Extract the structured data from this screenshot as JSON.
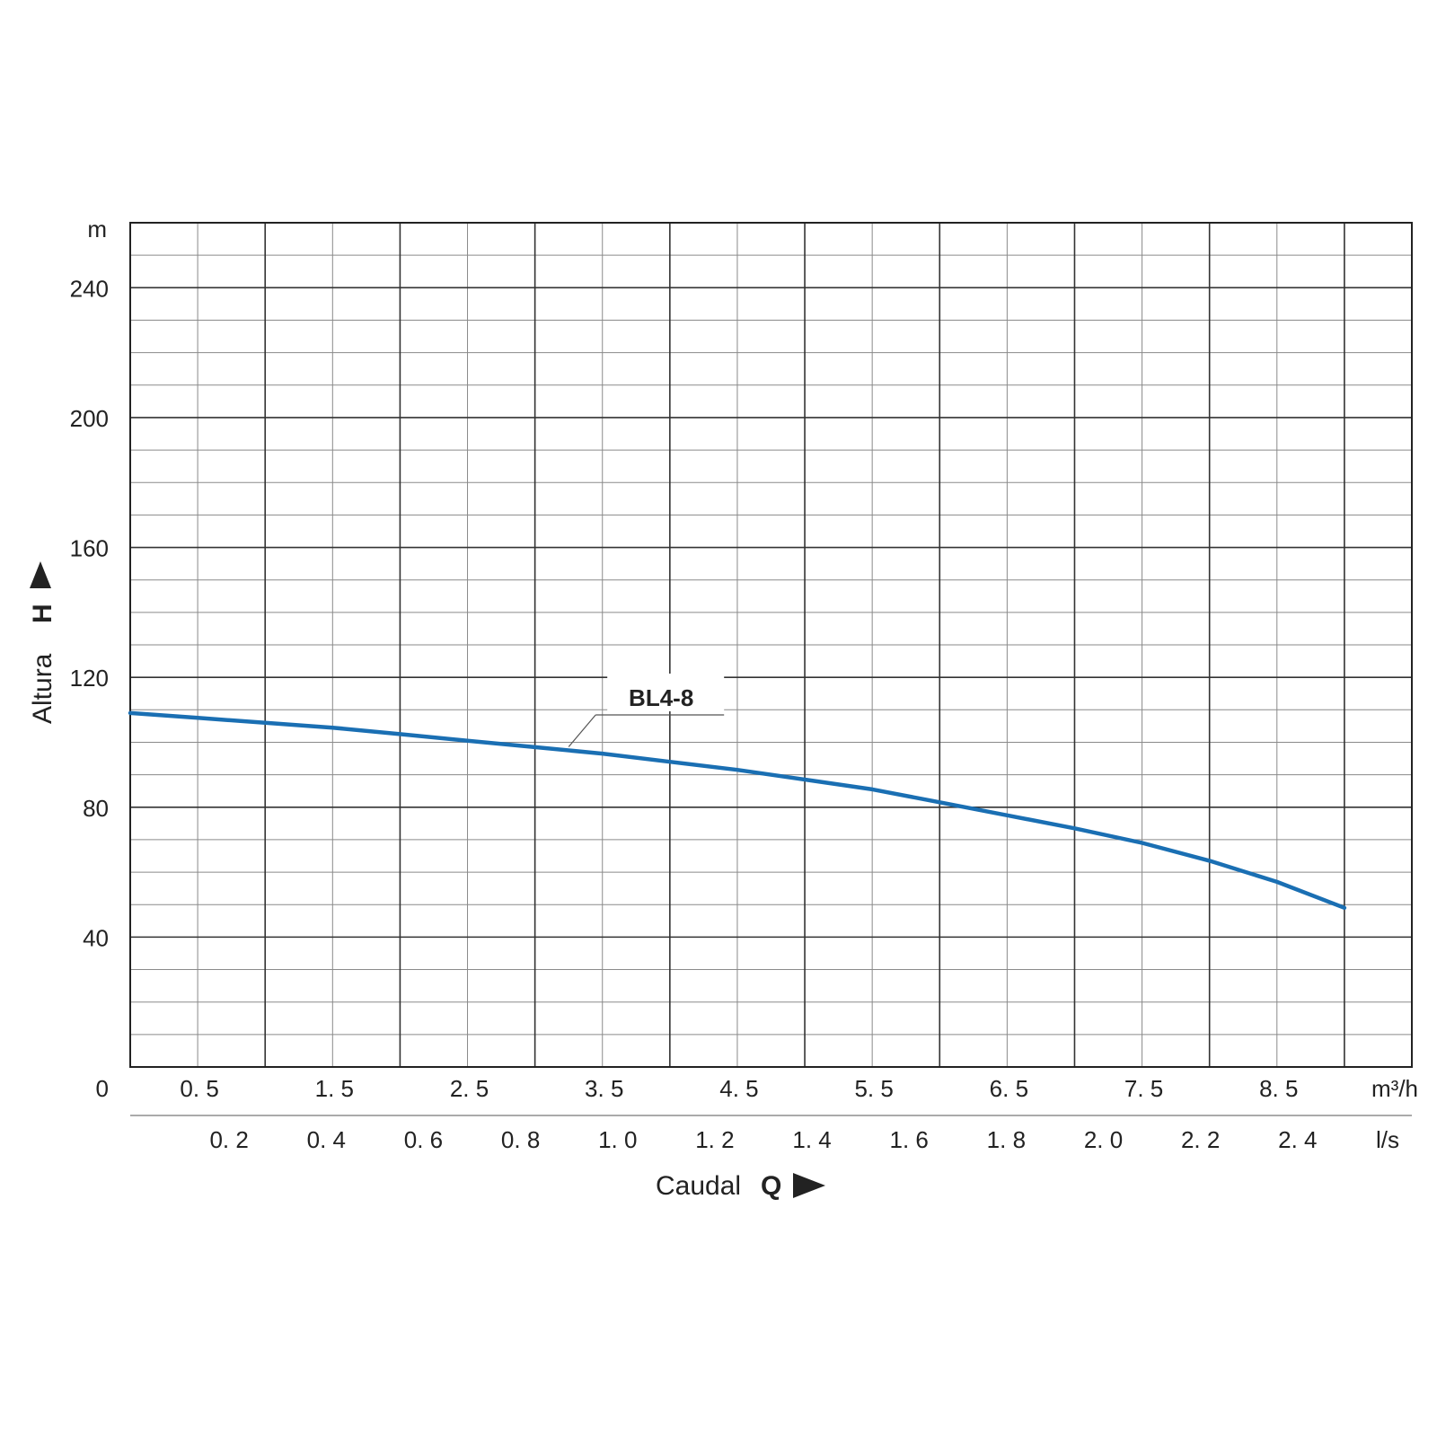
{
  "chart_data": {
    "type": "line",
    "y_unit": "m",
    "x_unit_primary": "m³/h",
    "x_unit_secondary": "l/s",
    "ylabel_word": "Altura",
    "ylabel_symbol": "H",
    "xlabel_word": "Caudal",
    "xlabel_symbol": "Q",
    "ylim": [
      0,
      260
    ],
    "xlim": [
      0,
      9.5
    ],
    "y_ticks": [
      0,
      40,
      80,
      120,
      160,
      200,
      240
    ],
    "y_tick_labels": [
      "0",
      "40",
      "80",
      "120",
      "160",
      "200",
      "240"
    ],
    "x_ticks_primary": [
      0.5,
      1.5,
      2.5,
      3.5,
      4.5,
      5.5,
      6.5,
      7.5,
      8.5
    ],
    "x_tick_labels_primary": [
      "0. 5",
      "1. 5",
      "2. 5",
      "3. 5",
      "4. 5",
      "5. 5",
      "6. 5",
      "7. 5",
      "8. 5"
    ],
    "x_ticks_secondary": [
      0.2,
      0.4,
      0.6,
      0.8,
      1.0,
      1.2,
      1.4,
      1.6,
      1.8,
      2.0,
      2.2,
      2.4
    ],
    "x_tick_labels_secondary": [
      "0. 2",
      "0. 4",
      "0. 6",
      "0. 8",
      "1. 0",
      "1. 2",
      "1. 4",
      "1. 6",
      "1. 8",
      "2. 0",
      "2. 2",
      "2. 4"
    ],
    "grid": true,
    "grid_major_x_step": 1,
    "grid_minor_x_step": 0.5,
    "grid_major_y_step": 40,
    "grid_minor_y_step": 10,
    "series": [
      {
        "name": "BL4-8",
        "color": "#1a6fb3",
        "x": [
          0,
          0.5,
          1.0,
          1.5,
          2.0,
          2.5,
          3.0,
          3.5,
          4.0,
          4.5,
          5.0,
          5.5,
          6.0,
          6.5,
          7.0,
          7.5,
          8.0,
          8.5,
          9.0
        ],
        "y": [
          109,
          107.5,
          106,
          104.5,
          102.5,
          100.5,
          98.5,
          96.5,
          94,
          91.5,
          88.5,
          85.5,
          81.5,
          77.5,
          73.5,
          69,
          63.5,
          57,
          49
        ]
      }
    ],
    "series_label_anchor_x": 3.25
  }
}
